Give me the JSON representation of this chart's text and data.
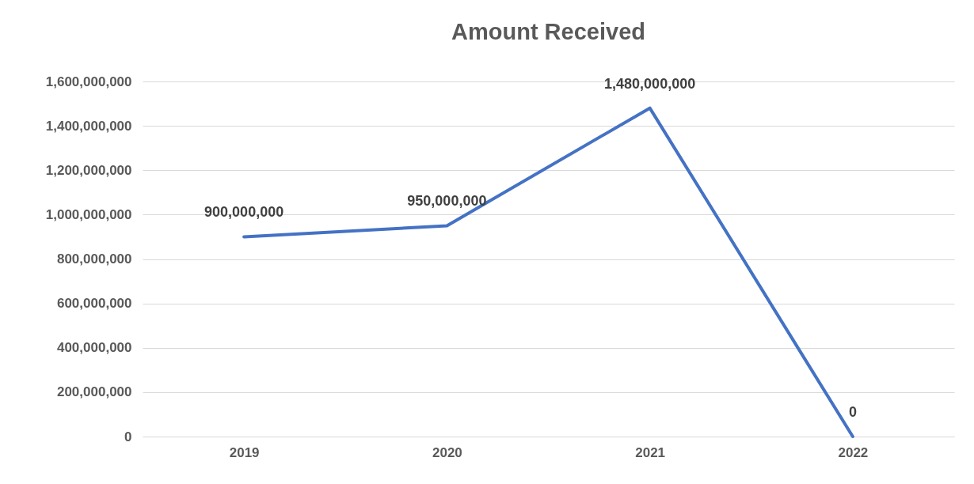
{
  "chart_data": {
    "type": "line",
    "title": "Amount Received",
    "categories": [
      "2019",
      "2020",
      "2021",
      "2022"
    ],
    "series": [
      {
        "color": "#4472c4",
        "values": [
          900000000,
          950000000,
          1480000000,
          0
        ],
        "value_labels": [
          "900,000,000",
          "950,000,000",
          "1,480,000,000",
          "0"
        ]
      }
    ],
    "ylim": [
      0,
      1600000000
    ],
    "yticks": [
      0,
      {
        "value": 200000000,
        "label": "200,000,000"
      },
      {
        "value": 400000000,
        "label": "400,000,000"
      },
      {
        "value": 600000000,
        "label": "600,000,000"
      },
      {
        "value": 800000000,
        "label": "800,000,000"
      },
      {
        "value": 1000000000,
        "label": "1,000,000,000"
      },
      {
        "value": 1200000000,
        "label": "1,200,000,000"
      },
      {
        "value": 1400000000,
        "label": "1,400,000,000"
      },
      {
        "value": 1600000000,
        "label": "1,600,000,000"
      }
    ],
    "grid": "y",
    "marker": "none",
    "line_style": "solid",
    "legend": false
  }
}
